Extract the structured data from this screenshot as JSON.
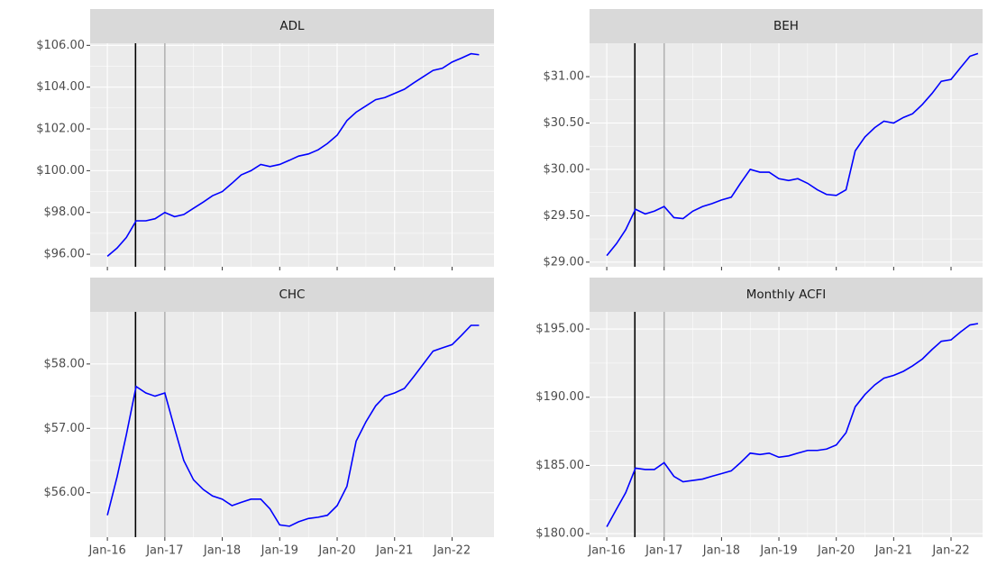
{
  "chart_data": [
    {
      "type": "line",
      "title": "ADL",
      "color": "#0000ff",
      "x": [
        2016,
        2016.17,
        2016.33,
        2016.5,
        2016.67,
        2016.83,
        2017,
        2017.17,
        2017.33,
        2017.5,
        2017.67,
        2017.83,
        2018,
        2018.17,
        2018.33,
        2018.5,
        2018.67,
        2018.83,
        2019,
        2019.17,
        2019.33,
        2019.5,
        2019.67,
        2019.83,
        2020,
        2020.17,
        2020.33,
        2020.5,
        2020.67,
        2020.83,
        2021,
        2021.17,
        2021.33,
        2021.5,
        2021.67,
        2021.83,
        2022,
        2022.17,
        2022.33,
        2022.47
      ],
      "values": [
        95.9,
        96.3,
        96.8,
        97.6,
        97.6,
        97.7,
        98.0,
        97.8,
        97.9,
        98.2,
        98.5,
        98.8,
        99.0,
        99.4,
        99.8,
        100.0,
        100.3,
        100.2,
        100.3,
        100.5,
        100.7,
        100.8,
        101.0,
        101.3,
        101.7,
        102.4,
        102.8,
        103.1,
        103.4,
        103.5,
        103.7,
        103.9,
        104.2,
        104.5,
        104.8,
        104.9,
        105.2,
        105.4,
        105.6,
        105.55
      ],
      "xlim": [
        2015.7,
        2022.73
      ],
      "ylim": [
        95.4,
        106.1
      ],
      "xticks": [
        2016,
        2017,
        2018,
        2019,
        2020,
        2021,
        2022
      ],
      "yticks": [
        {
          "value": 96,
          "label": "$96.00"
        },
        {
          "value": 98,
          "label": "$98.00"
        },
        {
          "value": 100,
          "label": "$100.00"
        },
        {
          "value": 102,
          "label": "$102.00"
        },
        {
          "value": 104,
          "label": "$104.00"
        },
        {
          "value": 106,
          "label": "$106.00"
        }
      ],
      "vlines": [
        {
          "x": 2016.49,
          "color": "#000000"
        },
        {
          "x": 2017.0,
          "color": "#b3b3b3"
        }
      ]
    },
    {
      "type": "line",
      "title": "BEH",
      "color": "#0000ff",
      "x": [
        2016,
        2016.17,
        2016.33,
        2016.5,
        2016.67,
        2016.83,
        2017,
        2017.17,
        2017.33,
        2017.5,
        2017.67,
        2017.83,
        2018,
        2018.17,
        2018.33,
        2018.5,
        2018.67,
        2018.83,
        2019,
        2019.17,
        2019.33,
        2019.5,
        2019.67,
        2019.83,
        2020,
        2020.17,
        2020.33,
        2020.5,
        2020.67,
        2020.83,
        2021,
        2021.17,
        2021.33,
        2021.5,
        2021.67,
        2021.83,
        2022,
        2022.17,
        2022.33,
        2022.47
      ],
      "values": [
        29.07,
        29.2,
        29.35,
        29.57,
        29.52,
        29.55,
        29.6,
        29.48,
        29.47,
        29.55,
        29.6,
        29.63,
        29.67,
        29.7,
        29.85,
        30.0,
        29.97,
        29.97,
        29.9,
        29.88,
        29.9,
        29.85,
        29.78,
        29.73,
        29.72,
        29.78,
        30.2,
        30.35,
        30.45,
        30.52,
        30.5,
        30.56,
        30.6,
        30.7,
        30.82,
        30.95,
        30.97,
        31.1,
        31.22,
        31.25
      ],
      "xlim": [
        2015.7,
        2022.55
      ],
      "ylim": [
        28.95,
        31.36
      ],
      "xticks": [
        2016,
        2017,
        2018,
        2019,
        2020,
        2021,
        2022
      ],
      "yticks": [
        {
          "value": 29,
          "label": "$29.00"
        },
        {
          "value": 29.5,
          "label": "$29.50"
        },
        {
          "value": 30,
          "label": "$30.00"
        },
        {
          "value": 30.5,
          "label": "$30.50"
        },
        {
          "value": 31,
          "label": "$31.00"
        }
      ],
      "vlines": [
        {
          "x": 2016.49,
          "color": "#000000"
        },
        {
          "x": 2017.0,
          "color": "#b3b3b3"
        }
      ]
    },
    {
      "type": "line",
      "title": "CHC",
      "color": "#0000ff",
      "x": [
        2016,
        2016.17,
        2016.33,
        2016.5,
        2016.67,
        2016.83,
        2017,
        2017.17,
        2017.33,
        2017.5,
        2017.67,
        2017.83,
        2018,
        2018.17,
        2018.33,
        2018.5,
        2018.67,
        2018.83,
        2019,
        2019.17,
        2019.33,
        2019.5,
        2019.67,
        2019.83,
        2020,
        2020.17,
        2020.33,
        2020.5,
        2020.67,
        2020.83,
        2021,
        2021.17,
        2021.33,
        2021.5,
        2021.67,
        2021.83,
        2022,
        2022.17,
        2022.33,
        2022.47
      ],
      "values": [
        55.65,
        56.25,
        56.9,
        57.65,
        57.55,
        57.5,
        57.55,
        57.0,
        56.5,
        56.2,
        56.05,
        55.95,
        55.9,
        55.8,
        55.85,
        55.9,
        55.9,
        55.75,
        55.5,
        55.48,
        55.55,
        55.6,
        55.62,
        55.65,
        55.8,
        56.1,
        56.8,
        57.1,
        57.35,
        57.5,
        57.55,
        57.62,
        57.8,
        58.0,
        58.2,
        58.25,
        58.3,
        58.45,
        58.6,
        58.6
      ],
      "xlim": [
        2015.7,
        2022.73
      ],
      "ylim": [
        55.31,
        58.81
      ],
      "xticks": [
        {
          "value": 2016,
          "label": "Jan-16"
        },
        {
          "value": 2017,
          "label": "Jan-17"
        },
        {
          "value": 2018,
          "label": "Jan-18"
        },
        {
          "value": 2019,
          "label": "Jan-19"
        },
        {
          "value": 2020,
          "label": "Jan-20"
        },
        {
          "value": 2021,
          "label": "Jan-21"
        },
        {
          "value": 2022,
          "label": "Jan-22"
        }
      ],
      "yticks": [
        {
          "value": 56,
          "label": "$56.00"
        },
        {
          "value": 57,
          "label": "$57.00"
        },
        {
          "value": 58,
          "label": "$58.00"
        }
      ],
      "vlines": [
        {
          "x": 2016.49,
          "color": "#000000"
        },
        {
          "x": 2017.0,
          "color": "#b3b3b3"
        }
      ]
    },
    {
      "type": "line",
      "title": "Monthly ACFI",
      "color": "#0000ff",
      "x": [
        2016,
        2016.17,
        2016.33,
        2016.5,
        2016.67,
        2016.83,
        2017,
        2017.17,
        2017.33,
        2017.5,
        2017.67,
        2017.83,
        2018,
        2018.17,
        2018.33,
        2018.5,
        2018.67,
        2018.83,
        2019,
        2019.17,
        2019.33,
        2019.5,
        2019.67,
        2019.83,
        2020,
        2020.17,
        2020.33,
        2020.5,
        2020.67,
        2020.83,
        2021,
        2021.17,
        2021.33,
        2021.5,
        2021.67,
        2021.83,
        2022,
        2022.17,
        2022.33,
        2022.47
      ],
      "values": [
        180.5,
        181.8,
        183.0,
        184.8,
        184.7,
        184.7,
        185.2,
        184.2,
        183.8,
        183.9,
        184.0,
        184.2,
        184.4,
        184.6,
        185.2,
        185.9,
        185.8,
        185.9,
        185.6,
        185.7,
        185.9,
        186.1,
        186.1,
        186.2,
        186.5,
        187.4,
        189.3,
        190.2,
        190.9,
        191.4,
        191.6,
        191.9,
        192.3,
        192.8,
        193.5,
        194.1,
        194.2,
        194.8,
        195.3,
        195.4
      ],
      "xlim": [
        2015.7,
        2022.55
      ],
      "ylim": [
        179.74,
        196.26
      ],
      "xticks": [
        {
          "value": 2016,
          "label": "Jan-16"
        },
        {
          "value": 2017,
          "label": "Jan-17"
        },
        {
          "value": 2018,
          "label": "Jan-18"
        },
        {
          "value": 2019,
          "label": "Jan-19"
        },
        {
          "value": 2020,
          "label": "Jan-20"
        },
        {
          "value": 2021,
          "label": "Jan-21"
        },
        {
          "value": 2022,
          "label": "Jan-22"
        }
      ],
      "yticks": [
        {
          "value": 180,
          "label": "$180.00"
        },
        {
          "value": 185,
          "label": "$185.00"
        },
        {
          "value": 190,
          "label": "$190.00"
        },
        {
          "value": 195,
          "label": "$195.00"
        }
      ],
      "vlines": [
        {
          "x": 2016.49,
          "color": "#000000"
        },
        {
          "x": 2017.0,
          "color": "#b3b3b3"
        }
      ]
    }
  ]
}
